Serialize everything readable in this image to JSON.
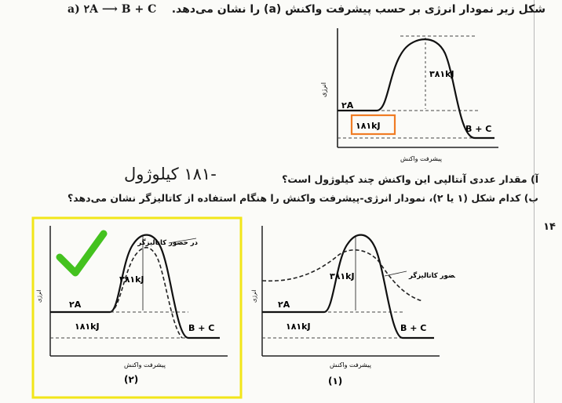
{
  "header": {
    "question_text": "شکل زیر نمودار انرژی بر حسب پیشرفت واکنش (a) را نشان می‌دهد.",
    "reaction": "a) ۲A ⟶ B + C"
  },
  "parts": {
    "a_text": "آ) مقدار عددی آنتالپی این واکنش چند کیلوژول است؟",
    "b_text": "ب) کدام شکل (۱ یا ۲)، نمودار انرژی-پیشرفت واکنش را هنگام استفاده از کاتالیزگر نشان می‌دهد؟",
    "answer_handwritten": "-۱۸۱ کیلوژول",
    "question_number": "۱۴"
  },
  "top_chart": {
    "y_axis_label": "انرژی",
    "x_axis_label": "پیشرفت واکنش",
    "activation_label": "۳۸۱kJ",
    "enthalpy_label": "۱۸۱kJ",
    "reactant_label": "۲A",
    "product_label": "B + C",
    "highlight_color": "#f07c24"
  },
  "chart_1": {
    "caption": "(۱)",
    "catalyst_label": "در حضور کاتالیزگر",
    "activation_label": "۳۸۱kJ",
    "enthalpy_label": "۱۸۱kJ",
    "reactant_label": "۲A",
    "product_label": "B + C",
    "x_axis_label": "پیشرفت واکنش",
    "y_axis_label": "انرژی"
  },
  "chart_2": {
    "caption": "(۲)",
    "catalyst_label": "در حضور کاتالیزگر",
    "activation_label": "۳۸۱kJ",
    "enthalpy_label": "۱۸۱kJ",
    "reactant_label": "۲A",
    "product_label": "B + C",
    "x_axis_label": "پیشرفت واکنش",
    "y_axis_label": "انرژی",
    "selection_color": "#f2e619",
    "check_color": "#44c21f"
  }
}
